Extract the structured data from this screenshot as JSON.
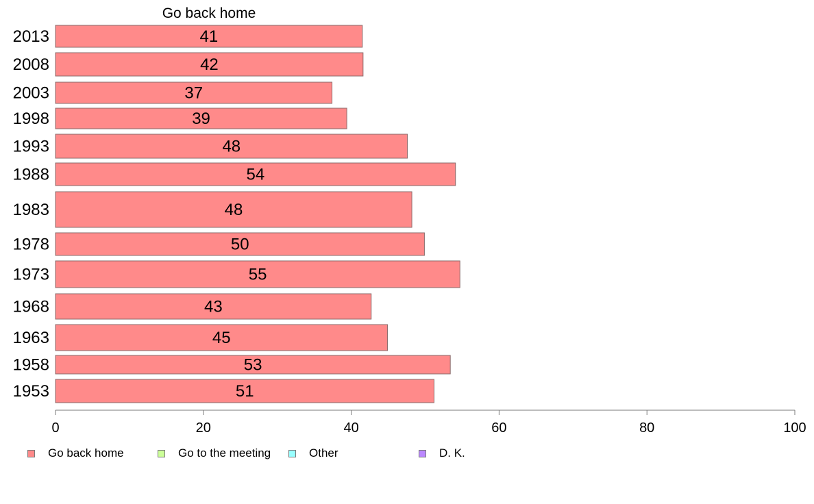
{
  "chart_data": {
    "type": "bar",
    "orientation": "horizontal",
    "title": "Go back home",
    "categories": [
      "2013",
      "2008",
      "2003",
      "1998",
      "1993",
      "1988",
      "1983",
      "1978",
      "1973",
      "1968",
      "1963",
      "1958",
      "1953"
    ],
    "series": [
      {
        "name": "Go back home",
        "color": "#ff8a8a",
        "values": [
          41,
          42,
          37,
          39,
          48,
          54,
          48,
          50,
          55,
          43,
          45,
          53,
          51
        ],
        "bar_lengths": [
          41.5,
          41.6,
          37.4,
          39.4,
          47.6,
          54.1,
          48.2,
          49.9,
          54.7,
          42.7,
          44.9,
          53.4,
          51.2
        ]
      }
    ],
    "xlim": [
      0,
      100
    ],
    "xticks": [
      "0",
      "20",
      "40",
      "60",
      "80",
      "100"
    ],
    "legend": {
      "position": "bottom-left",
      "items": [
        {
          "label": "Go back home",
          "color": "#ff8a8a"
        },
        {
          "label": "Go to the meeting",
          "color": "#ccff99"
        },
        {
          "label": "Other",
          "color": "#99ffff"
        },
        {
          "label": "D. K.",
          "color": "#bb88ff"
        }
      ]
    }
  }
}
